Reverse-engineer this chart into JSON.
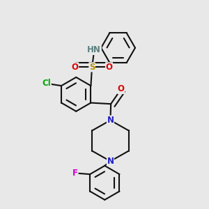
{
  "bg": "#e8e8e8",
  "bc": "#111111",
  "lw": 1.5,
  "colors": {
    "N": "#2020c8",
    "O": "#dd0000",
    "S": "#b89000",
    "Cl": "#00aa00",
    "F": "#cc00cc",
    "HN": "#5c8080"
  },
  "fs": 8.5,
  "r": 0.075
}
